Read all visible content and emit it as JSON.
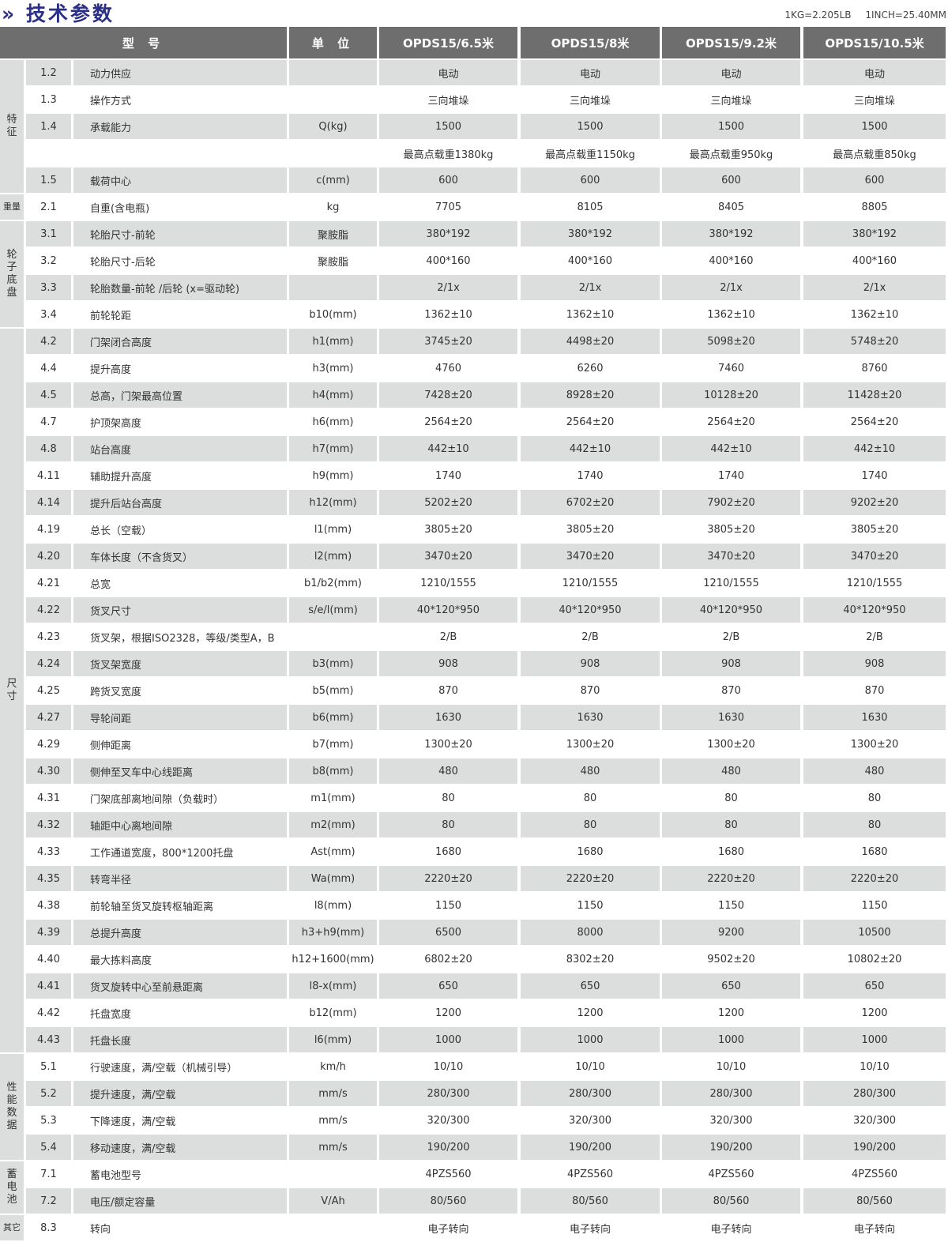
{
  "header": {
    "title_icon": "double-chevron-right-icon",
    "title": "技术参数",
    "units_note": "1KG=2.205LB 1INCH=25.40MM"
  },
  "columns": {
    "model": "型 号",
    "unit": "单 位",
    "models": [
      "OPDS15/6.5米",
      "OPDS15/8米",
      "OPDS15/9.2米",
      "OPDS15/10.5米"
    ]
  },
  "colors": {
    "header_bg": "#6e6e6e",
    "stripe": "#dcdddd",
    "title": "#2b2f86"
  },
  "groups": [
    {
      "label": "特\n征",
      "rows": 5
    },
    {
      "label": "重量",
      "rows": 1
    },
    {
      "label": "轮\n子\n底\n盘",
      "rows": 4
    },
    {
      "label": "尺\n寸",
      "rows": 27
    },
    {
      "label": "性\n能\n数\n据",
      "rows": 4
    },
    {
      "label": "蓄\n电\n池",
      "rows": 2
    },
    {
      "label": "其它",
      "rows": 1
    }
  ],
  "rows": [
    {
      "num": "1.2",
      "name": "动力供应",
      "unit": "",
      "values": [
        "电动",
        "电动",
        "电动",
        "电动"
      ]
    },
    {
      "num": "1.3",
      "name": "操作方式",
      "unit": "",
      "values": [
        "三向堆垛",
        "三向堆垛",
        "三向堆垛",
        "三向堆垛"
      ]
    },
    {
      "num": "1.4",
      "name": "承载能力",
      "unit": "Q(kg)",
      "values": [
        "1500",
        "1500",
        "1500",
        "1500"
      ]
    },
    {
      "num": "",
      "name": "",
      "unit": "",
      "values": [
        "最高点载重1380kg",
        "最高点载重1150kg",
        "最高点载重950kg",
        "最高点载重850kg"
      ]
    },
    {
      "num": "1.5",
      "name": "载荷中心",
      "unit": "c(mm)",
      "values": [
        "600",
        "600",
        "600",
        "600"
      ]
    },
    {
      "num": "2.1",
      "name": "自重(含电瓶)",
      "unit": "kg",
      "values": [
        "7705",
        "8105",
        "8405",
        "8805"
      ]
    },
    {
      "num": "3.1",
      "name": "轮胎尺寸-前轮",
      "unit": "聚胺脂",
      "values": [
        "380*192",
        "380*192",
        "380*192",
        "380*192"
      ]
    },
    {
      "num": "3.2",
      "name": "轮胎尺寸-后轮",
      "unit": "聚胺脂",
      "values": [
        "400*160",
        "400*160",
        "400*160",
        "400*160"
      ]
    },
    {
      "num": "3.3",
      "name": "轮胎数量-前轮 /后轮 (x=驱动轮)",
      "unit": "",
      "values": [
        "2/1x",
        "2/1x",
        "2/1x",
        "2/1x"
      ]
    },
    {
      "num": "3.4",
      "name": "前轮轮距",
      "unit": "b10(mm)",
      "values": [
        "1362±10",
        "1362±10",
        "1362±10",
        "1362±10"
      ]
    },
    {
      "num": "4.2",
      "name": "门架闭合高度",
      "unit": "h1(mm)",
      "values": [
        "3745±20",
        "4498±20",
        "5098±20",
        "5748±20"
      ]
    },
    {
      "num": "4.4",
      "name": "提升高度",
      "unit": "h3(mm)",
      "values": [
        "4760",
        "6260",
        "7460",
        "8760"
      ]
    },
    {
      "num": "4.5",
      "name": "总高，门架最高位置",
      "unit": "h4(mm)",
      "values": [
        "7428±20",
        "8928±20",
        "10128±20",
        "11428±20"
      ]
    },
    {
      "num": "4.7",
      "name": "护顶架高度",
      "unit": "h6(mm)",
      "values": [
        "2564±20",
        "2564±20",
        "2564±20",
        "2564±20"
      ]
    },
    {
      "num": "4.8",
      "name": "站台高度",
      "unit": "h7(mm)",
      "values": [
        "442±10",
        "442±10",
        "442±10",
        "442±10"
      ]
    },
    {
      "num": "4.11",
      "name": "辅助提升高度",
      "unit": "h9(mm)",
      "values": [
        "1740",
        "1740",
        "1740",
        "1740"
      ]
    },
    {
      "num": "4.14",
      "name": "提升后站台高度",
      "unit": "h12(mm)",
      "values": [
        "5202±20",
        "6702±20",
        "7902±20",
        "9202±20"
      ]
    },
    {
      "num": "4.19",
      "name": "总长（空载）",
      "unit": "l1(mm)",
      "values": [
        "3805±20",
        "3805±20",
        "3805±20",
        "3805±20"
      ]
    },
    {
      "num": "4.20",
      "name": "车体长度（不含货叉）",
      "unit": "l2(mm)",
      "values": [
        "3470±20",
        "3470±20",
        "3470±20",
        "3470±20"
      ]
    },
    {
      "num": "4.21",
      "name": "总宽",
      "unit": "b1/b2(mm)",
      "values": [
        "1210/1555",
        "1210/1555",
        "1210/1555",
        "1210/1555"
      ]
    },
    {
      "num": "4.22",
      "name": "货叉尺寸",
      "unit": "s/e/l(mm)",
      "values": [
        "40*120*950",
        "40*120*950",
        "40*120*950",
        "40*120*950"
      ]
    },
    {
      "num": "4.23",
      "name": "货叉架，根据ISO2328，等级/类型A，B",
      "unit": "",
      "values": [
        "2/B",
        "2/B",
        "2/B",
        "2/B"
      ]
    },
    {
      "num": "4.24",
      "name": "货叉架宽度",
      "unit": "b3(mm)",
      "values": [
        "908",
        "908",
        "908",
        "908"
      ]
    },
    {
      "num": "4.25",
      "name": "跨货叉宽度",
      "unit": "b5(mm)",
      "values": [
        "870",
        "870",
        "870",
        "870"
      ]
    },
    {
      "num": "4.27",
      "name": "导轮间距",
      "unit": "b6(mm)",
      "values": [
        "1630",
        "1630",
        "1630",
        "1630"
      ]
    },
    {
      "num": "4.29",
      "name": "侧伸距离",
      "unit": "b7(mm)",
      "values": [
        "1300±20",
        "1300±20",
        "1300±20",
        "1300±20"
      ]
    },
    {
      "num": "4.30",
      "name": "侧伸至叉车中心线距离",
      "unit": "b8(mm)",
      "values": [
        "480",
        "480",
        "480",
        "480"
      ]
    },
    {
      "num": "4.31",
      "name": "门架底部离地间隙（负载时）",
      "unit": "m1(mm)",
      "values": [
        "80",
        "80",
        "80",
        "80"
      ]
    },
    {
      "num": "4.32",
      "name": "轴距中心离地间隙",
      "unit": "m2(mm)",
      "values": [
        "80",
        "80",
        "80",
        "80"
      ]
    },
    {
      "num": "4.33",
      "name": "工作通道宽度，800*1200托盘",
      "unit": "Ast(mm)",
      "values": [
        "1680",
        "1680",
        "1680",
        "1680"
      ]
    },
    {
      "num": "4.35",
      "name": "转弯半径",
      "unit": "Wa(mm)",
      "values": [
        "2220±20",
        "2220±20",
        "2220±20",
        "2220±20"
      ]
    },
    {
      "num": "4.38",
      "name": "前轮轴至货叉旋转枢轴距离",
      "unit": "l8(mm)",
      "values": [
        "1150",
        "1150",
        "1150",
        "1150"
      ]
    },
    {
      "num": "4.39",
      "name": "总提升高度",
      "unit": "h3+h9(mm)",
      "values": [
        "6500",
        "8000",
        "9200",
        "10500"
      ]
    },
    {
      "num": "4.40",
      "name": "最大拣料高度",
      "unit": "h12+1600(mm)",
      "values": [
        "6802±20",
        "8302±20",
        "9502±20",
        "10802±20"
      ]
    },
    {
      "num": "4.41",
      "name": "货叉旋转中心至前悬距离",
      "unit": "l8-x(mm)",
      "values": [
        "650",
        "650",
        "650",
        "650"
      ]
    },
    {
      "num": "4.42",
      "name": "托盘宽度",
      "unit": "b12(mm)",
      "values": [
        "1200",
        "1200",
        "1200",
        "1200"
      ]
    },
    {
      "num": "4.43",
      "name": "托盘长度",
      "unit": "l6(mm)",
      "values": [
        "1000",
        "1000",
        "1000",
        "1000"
      ]
    },
    {
      "num": "5.1",
      "name": "行驶速度，满/空载（机械引导）",
      "unit": "km/h",
      "values": [
        "10/10",
        "10/10",
        "10/10",
        "10/10"
      ]
    },
    {
      "num": "5.2",
      "name": "提升速度，满/空载",
      "unit": "mm/s",
      "values": [
        "280/300",
        "280/300",
        "280/300",
        "280/300"
      ]
    },
    {
      "num": "5.3",
      "name": "下降速度，满/空载",
      "unit": "mm/s",
      "values": [
        "320/300",
        "320/300",
        "320/300",
        "320/300"
      ]
    },
    {
      "num": "5.4",
      "name": "移动速度，满/空载",
      "unit": "mm/s",
      "values": [
        "190/200",
        "190/200",
        "190/200",
        "190/200"
      ]
    },
    {
      "num": "7.1",
      "name": "蓄电池型号",
      "unit": "",
      "values": [
        "4PZS560",
        "4PZS560",
        "4PZS560",
        "4PZS560"
      ]
    },
    {
      "num": "7.2",
      "name": "电压/额定容量",
      "unit": "V/Ah",
      "values": [
        "80/560",
        "80/560",
        "80/560",
        "80/560"
      ]
    },
    {
      "num": "8.3",
      "name": "转向",
      "unit": "",
      "values": [
        "电子转向",
        "电子转向",
        "电子转向",
        "电子转向"
      ]
    }
  ]
}
